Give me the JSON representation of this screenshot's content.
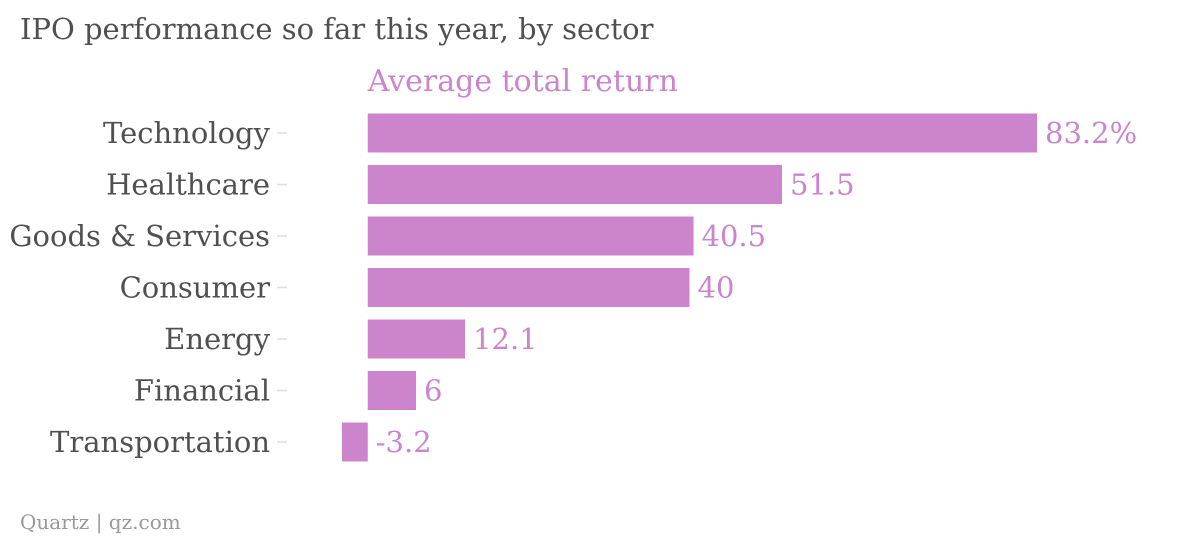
{
  "title": "IPO performance so far this year, by sector",
  "source": "Quartz | qz.com",
  "colors": {
    "bar": "#cc85cc",
    "title": "#505050",
    "category_label": "#505050",
    "footer": "#999999",
    "tick": "#dddddd"
  },
  "chart_data": {
    "type": "bar",
    "orientation": "horizontal",
    "title": "IPO performance so far this year, by sector",
    "xlabel": "",
    "ylabel": "",
    "xlim": [
      -3.2,
      83.2
    ],
    "grid": false,
    "legend": "none",
    "categories": [
      "Technology",
      "Healthcare",
      "Goods & Services",
      "Consumer",
      "Energy",
      "Financial",
      "Transportation"
    ],
    "series": [
      {
        "name": "Average total return",
        "values": [
          83.2,
          51.5,
          40.5,
          40,
          12.1,
          6,
          -3.2
        ],
        "value_labels": [
          "83.2%",
          "51.5",
          "40.5",
          "40",
          "12.1",
          "6",
          "-3.2"
        ]
      }
    ]
  }
}
